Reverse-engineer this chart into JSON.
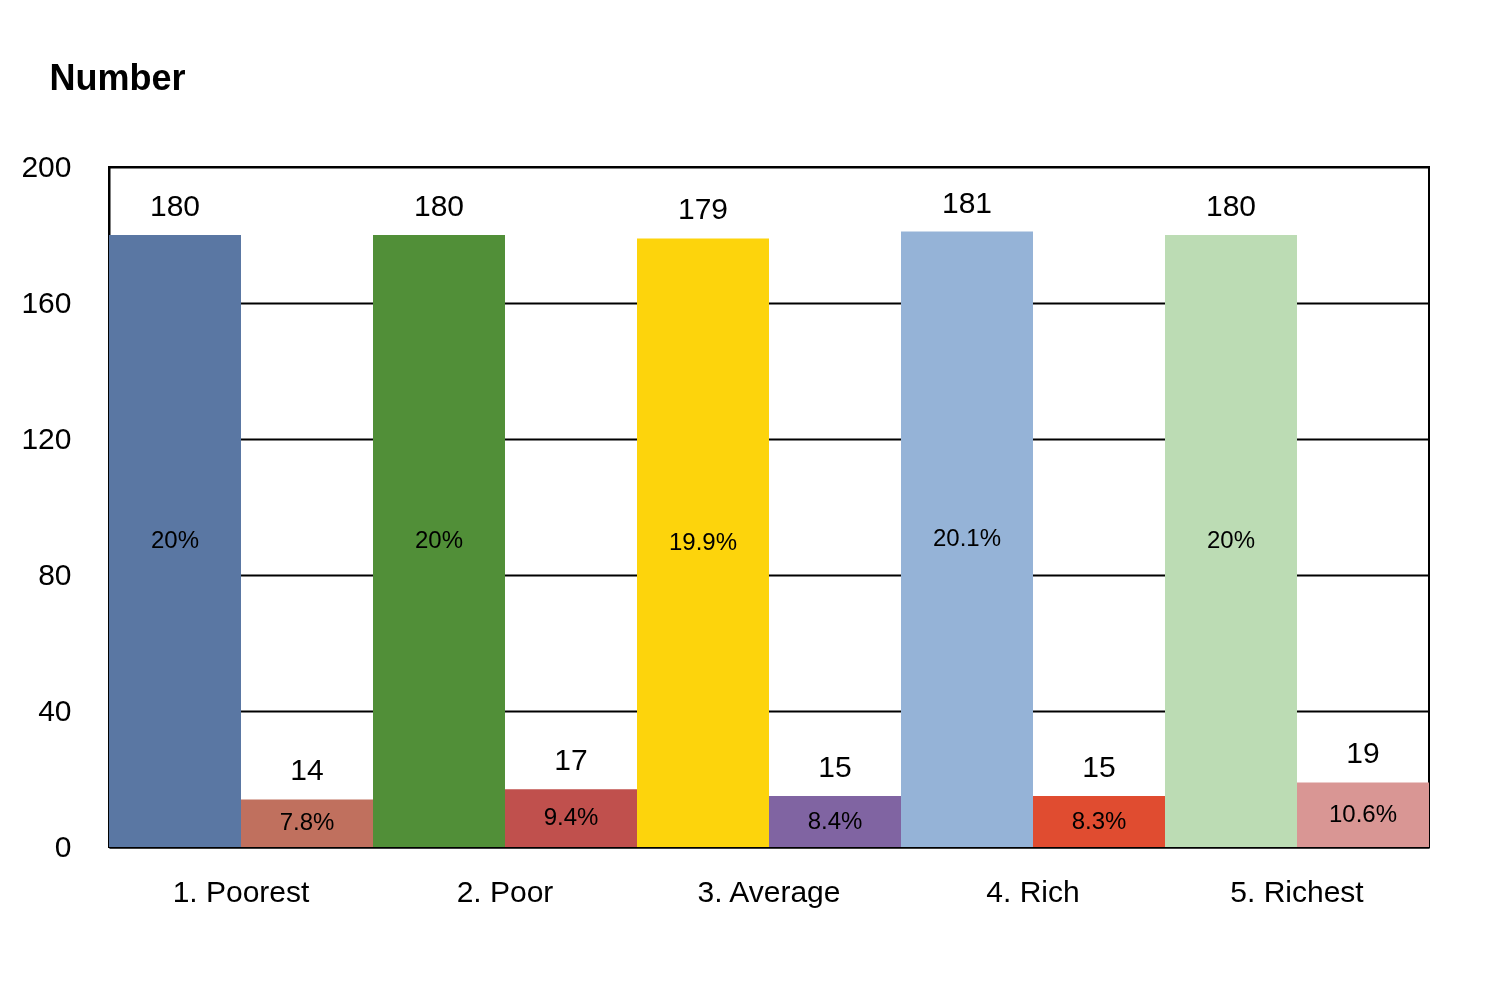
{
  "chart_data": {
    "type": "bar",
    "ylabel": "Number",
    "categories": [
      "1. Poorest",
      "2. Poor",
      "3. Average",
      "4. Rich",
      "5. Richest"
    ],
    "series": [
      {
        "colors": [
          "#5a77a3",
          "#518f38",
          "#fdd40c",
          "#95b3d7",
          "#bcdcb4"
        ],
        "values": [
          180,
          180,
          179,
          181,
          180
        ]
      },
      {
        "colors": [
          "#c0705e",
          "#c0504d",
          "#8064a2",
          "#e04c30",
          "#d99694"
        ],
        "values": [
          14,
          17,
          15,
          15,
          19
        ]
      }
    ],
    "annotations": [
      "20%",
      "20%",
      "19.9%",
      "20.1%",
      "20%",
      "7.8%",
      "9.4%",
      "8.4%",
      "8.3%",
      "10.6%"
    ],
    "ylim": [
      0,
      200
    ],
    "yticks": [
      0,
      40,
      80,
      120,
      160,
      200
    ],
    "grid": "y",
    "data_labels": true
  }
}
